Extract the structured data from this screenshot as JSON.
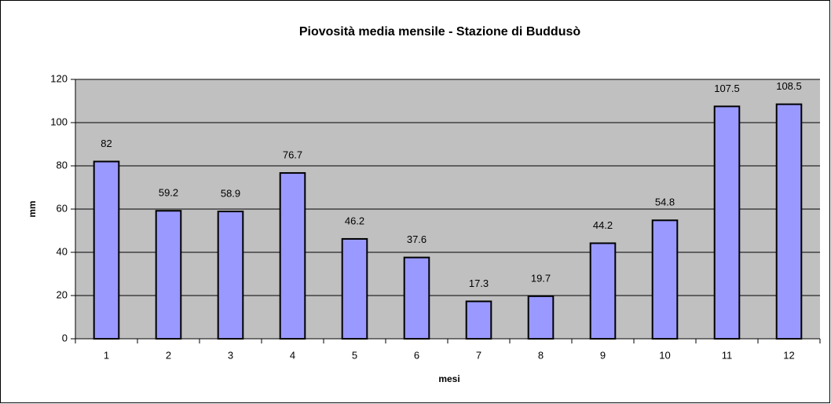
{
  "chart_data": {
    "type": "bar",
    "title": "Piovosità media mensile - Stazione di Buddusò",
    "x_label": "mesi",
    "y_label": "mm",
    "categories": [
      "1",
      "2",
      "3",
      "4",
      "5",
      "6",
      "7",
      "8",
      "9",
      "10",
      "11",
      "12"
    ],
    "values": [
      82,
      59.2,
      58.9,
      76.7,
      46.2,
      37.6,
      17.3,
      19.7,
      44.2,
      54.8,
      107.5,
      108.5
    ],
    "color": "#9999ff",
    "ylim": [
      0,
      120
    ],
    "yticks": [
      0,
      20,
      40,
      60,
      80,
      100,
      120
    ],
    "grid": true
  }
}
